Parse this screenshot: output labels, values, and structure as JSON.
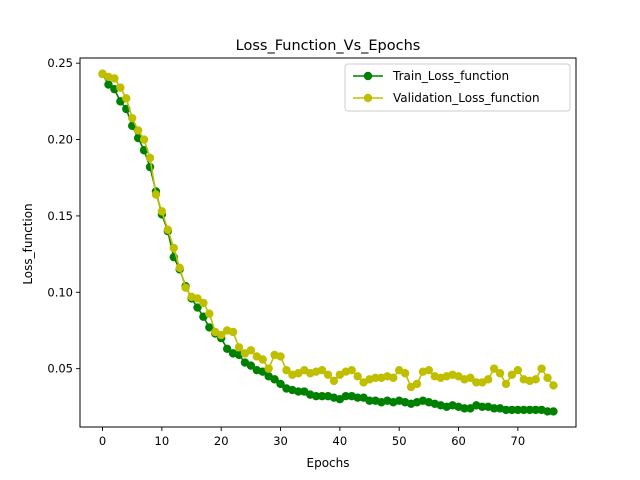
{
  "chart_data": {
    "type": "line",
    "title": "Loss_Function_Vs_Epochs",
    "xlabel": "Epochs",
    "ylabel": "Loss_function",
    "xlim": [
      -3.8,
      79.8
    ],
    "ylim": [
      0.0118,
      0.2534
    ],
    "xticks": [
      0,
      10,
      20,
      30,
      40,
      50,
      60,
      70
    ],
    "yticks": [
      0.05,
      0.1,
      0.15,
      0.2,
      0.25
    ],
    "ytick_labels": [
      "0.05",
      "0.10",
      "0.15",
      "0.20",
      "0.25"
    ],
    "grid": false,
    "legend_position": "top-right",
    "series": [
      {
        "name": "Train_Loss_function",
        "color": "#008000",
        "x": [
          0,
          1,
          2,
          3,
          4,
          5,
          6,
          7,
          8,
          9,
          10,
          11,
          12,
          13,
          14,
          15,
          16,
          17,
          18,
          19,
          20,
          21,
          22,
          23,
          24,
          25,
          26,
          27,
          28,
          29,
          30,
          31,
          32,
          33,
          34,
          35,
          36,
          37,
          38,
          39,
          40,
          41,
          42,
          43,
          44,
          45,
          46,
          47,
          48,
          49,
          50,
          51,
          52,
          53,
          54,
          55,
          56,
          57,
          58,
          59,
          60,
          61,
          62,
          63,
          64,
          65,
          66,
          67,
          68,
          69,
          70,
          71,
          72,
          73,
          74,
          75,
          76
        ],
        "values": [
          0.243,
          0.236,
          0.233,
          0.225,
          0.22,
          0.209,
          0.201,
          0.193,
          0.182,
          0.166,
          0.151,
          0.14,
          0.123,
          0.115,
          0.104,
          0.096,
          0.09,
          0.084,
          0.077,
          0.073,
          0.07,
          0.063,
          0.06,
          0.059,
          0.054,
          0.052,
          0.049,
          0.048,
          0.045,
          0.043,
          0.04,
          0.037,
          0.036,
          0.035,
          0.035,
          0.033,
          0.032,
          0.032,
          0.032,
          0.031,
          0.03,
          0.032,
          0.032,
          0.031,
          0.031,
          0.029,
          0.029,
          0.028,
          0.029,
          0.028,
          0.029,
          0.028,
          0.027,
          0.028,
          0.029,
          0.028,
          0.027,
          0.026,
          0.025,
          0.026,
          0.025,
          0.024,
          0.024,
          0.026,
          0.025,
          0.025,
          0.024,
          0.024,
          0.023,
          0.023,
          0.023,
          0.023,
          0.023,
          0.023,
          0.023,
          0.022,
          0.022
        ]
      },
      {
        "name": "Validation_Loss_function",
        "color": "#bfbf00",
        "x": [
          0,
          1,
          2,
          3,
          4,
          5,
          6,
          7,
          8,
          9,
          10,
          11,
          12,
          13,
          14,
          15,
          16,
          17,
          18,
          19,
          20,
          21,
          22,
          23,
          24,
          25,
          26,
          27,
          28,
          29,
          30,
          31,
          32,
          33,
          34,
          35,
          36,
          37,
          38,
          39,
          40,
          41,
          42,
          43,
          44,
          45,
          46,
          47,
          48,
          49,
          50,
          51,
          52,
          53,
          54,
          55,
          56,
          57,
          58,
          59,
          60,
          61,
          62,
          63,
          64,
          65,
          66,
          67,
          68,
          69,
          70,
          71,
          72,
          73,
          74,
          75,
          76
        ],
        "values": [
          0.243,
          0.241,
          0.24,
          0.234,
          0.227,
          0.214,
          0.206,
          0.2,
          0.188,
          0.164,
          0.153,
          0.141,
          0.129,
          0.116,
          0.103,
          0.097,
          0.096,
          0.093,
          0.086,
          0.074,
          0.072,
          0.075,
          0.074,
          0.064,
          0.06,
          0.062,
          0.058,
          0.056,
          0.05,
          0.059,
          0.058,
          0.049,
          0.046,
          0.047,
          0.049,
          0.047,
          0.048,
          0.049,
          0.046,
          0.042,
          0.046,
          0.048,
          0.049,
          0.045,
          0.041,
          0.043,
          0.044,
          0.044,
          0.045,
          0.044,
          0.049,
          0.047,
          0.038,
          0.04,
          0.048,
          0.049,
          0.045,
          0.044,
          0.045,
          0.046,
          0.045,
          0.043,
          0.044,
          0.041,
          0.041,
          0.043,
          0.05,
          0.047,
          0.04,
          0.046,
          0.049,
          0.043,
          0.042,
          0.043,
          0.05,
          0.044,
          0.039
        ]
      }
    ]
  }
}
